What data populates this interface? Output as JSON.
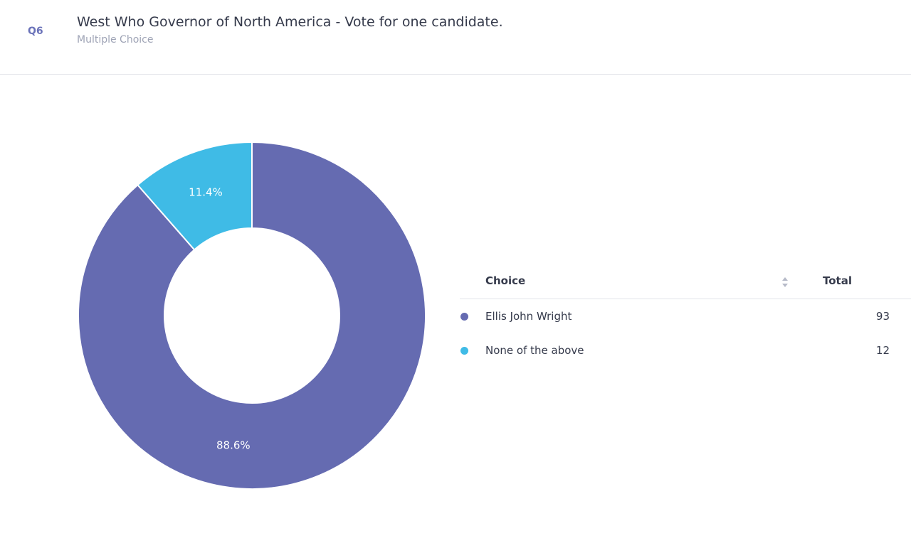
{
  "question": {
    "number": "Q6",
    "title": "West Who Governor of North America - Vote for one candidate.",
    "type": "Multiple Choice"
  },
  "table": {
    "choice_header": "Choice",
    "total_header": "Total",
    "rows": [
      {
        "choice": "Ellis John Wright",
        "total": "93",
        "color": "#656bb1"
      },
      {
        "choice": "None of the above",
        "total": "12",
        "color": "#3fbbe6"
      }
    ]
  },
  "chart_data": {
    "type": "pie",
    "style": "donut",
    "categories": [
      "Ellis John Wright",
      "None of the above"
    ],
    "values": [
      93,
      12
    ],
    "percent_labels": [
      "88.6%",
      "11.4%"
    ],
    "colors": [
      "#656bb1",
      "#3fbbe6"
    ]
  }
}
